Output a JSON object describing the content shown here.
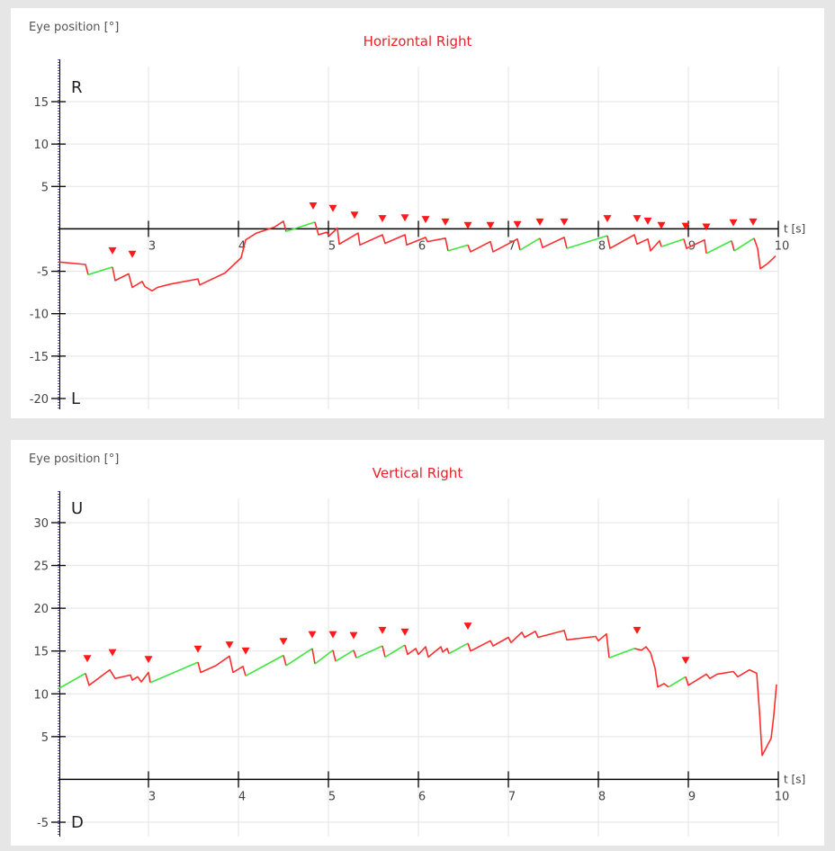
{
  "chart_data": [
    {
      "type": "line",
      "title": "Horizontal Right",
      "ylabel": "Eye position [°]",
      "xlabel": "t [s]",
      "top_marker": "R",
      "bottom_marker": "L",
      "xlim": [
        2,
        10
      ],
      "ylim": [
        -20,
        20
      ],
      "xticks": [
        3,
        4,
        5,
        6,
        7,
        8,
        9,
        10
      ],
      "yticks": [
        15,
        10,
        5,
        -5,
        -10,
        -15,
        -20
      ],
      "grid": true,
      "colors": {
        "fixation": "#ff2d2d",
        "pursuit": "#3ee63e",
        "marker": "#ff1a1a",
        "axis": "#000000",
        "grid": "#e3e3e3"
      },
      "series": [
        {
          "kind": "fixation",
          "points": [
            [
              2,
              -3.9
            ],
            [
              2.3,
              -4.2
            ],
            [
              2.33,
              -5.4
            ]
          ]
        },
        {
          "kind": "pursuit",
          "points": [
            [
              2.33,
              -5.4
            ],
            [
              2.6,
              -4.5
            ]
          ]
        },
        {
          "kind": "fixation",
          "points": [
            [
              2.6,
              -4.5
            ],
            [
              2.63,
              -6.1
            ],
            [
              2.78,
              -5.3
            ],
            [
              2.82,
              -6.9
            ],
            [
              2.93,
              -6.2
            ],
            [
              2.96,
              -6.8
            ],
            [
              3.04,
              -7.3
            ],
            [
              3.1,
              -6.9
            ],
            [
              3.25,
              -6.5
            ],
            [
              3.55,
              -5.9
            ],
            [
              3.57,
              -6.6
            ],
            [
              3.85,
              -5.2
            ],
            [
              4.03,
              -3.4
            ],
            [
              4.08,
              -1.3
            ],
            [
              4.2,
              -0.5
            ],
            [
              4.4,
              0.2
            ],
            [
              4.5,
              0.9
            ],
            [
              4.53,
              -0.3
            ]
          ]
        },
        {
          "kind": "pursuit",
          "points": [
            [
              4.53,
              -0.3
            ],
            [
              4.85,
              0.8
            ]
          ]
        },
        {
          "kind": "fixation",
          "points": [
            [
              4.85,
              0.8
            ],
            [
              4.89,
              -0.7
            ],
            [
              4.98,
              -0.4
            ],
            [
              5.01,
              -0.8
            ],
            [
              5.1,
              0.1
            ],
            [
              5.12,
              -1.8
            ],
            [
              5.33,
              -0.5
            ],
            [
              5.35,
              -1.9
            ],
            [
              5.6,
              -0.7
            ],
            [
              5.63,
              -1.7
            ],
            [
              5.85,
              -0.7
            ],
            [
              5.87,
              -1.9
            ],
            [
              6.08,
              -1.0
            ],
            [
              6.1,
              -1.5
            ],
            [
              6.3,
              -1.1
            ],
            [
              6.33,
              -2.6
            ]
          ]
        },
        {
          "kind": "pursuit",
          "points": [
            [
              6.33,
              -2.6
            ],
            [
              6.55,
              -1.9
            ]
          ]
        },
        {
          "kind": "fixation",
          "points": [
            [
              6.55,
              -1.9
            ],
            [
              6.58,
              -2.7
            ],
            [
              6.8,
              -1.5
            ],
            [
              6.83,
              -2.7
            ],
            [
              7.1,
              -1.2
            ],
            [
              7.13,
              -2.5
            ]
          ]
        },
        {
          "kind": "pursuit",
          "points": [
            [
              7.13,
              -2.5
            ],
            [
              7.35,
              -1.1
            ]
          ]
        },
        {
          "kind": "fixation",
          "points": [
            [
              7.35,
              -1.1
            ],
            [
              7.38,
              -2.2
            ],
            [
              7.62,
              -1.0
            ],
            [
              7.65,
              -2.3
            ]
          ]
        },
        {
          "kind": "pursuit",
          "points": [
            [
              7.65,
              -2.3
            ],
            [
              8.1,
              -0.8
            ]
          ]
        },
        {
          "kind": "fixation",
          "points": [
            [
              8.1,
              -0.8
            ],
            [
              8.13,
              -2.3
            ],
            [
              8.4,
              -0.7
            ],
            [
              8.43,
              -1.8
            ],
            [
              8.55,
              -1.2
            ],
            [
              8.58,
              -2.6
            ],
            [
              8.68,
              -1.4
            ],
            [
              8.7,
              -2.1
            ]
          ]
        },
        {
          "kind": "pursuit",
          "points": [
            [
              8.7,
              -2.1
            ],
            [
              8.95,
              -1.2
            ]
          ]
        },
        {
          "kind": "fixation",
          "points": [
            [
              8.95,
              -1.2
            ],
            [
              8.98,
              -2.3
            ],
            [
              9.18,
              -1.3
            ],
            [
              9.2,
              -2.9
            ]
          ]
        },
        {
          "kind": "pursuit",
          "points": [
            [
              9.2,
              -2.9
            ],
            [
              9.48,
              -1.4
            ]
          ]
        },
        {
          "kind": "fixation",
          "points": [
            [
              9.48,
              -1.4
            ],
            [
              9.51,
              -2.6
            ]
          ]
        },
        {
          "kind": "pursuit",
          "points": [
            [
              9.51,
              -2.6
            ],
            [
              9.73,
              -1.1
            ]
          ]
        },
        {
          "kind": "fixation",
          "points": [
            [
              9.73,
              -1.1
            ],
            [
              9.77,
              -2.3
            ],
            [
              9.8,
              -4.7
            ],
            [
              9.88,
              -4.1
            ],
            [
              9.97,
              -3.2
            ]
          ]
        }
      ],
      "saccade_markers": [
        {
          "x": 2.6,
          "y": -2.6
        },
        {
          "x": 2.82,
          "y": -3.0
        },
        {
          "x": 4.83,
          "y": 2.7
        },
        {
          "x": 5.05,
          "y": 2.4
        },
        {
          "x": 5.29,
          "y": 1.6
        },
        {
          "x": 5.6,
          "y": 1.2
        },
        {
          "x": 5.85,
          "y": 1.3
        },
        {
          "x": 6.08,
          "y": 1.1
        },
        {
          "x": 6.3,
          "y": 0.8
        },
        {
          "x": 6.55,
          "y": 0.4
        },
        {
          "x": 6.8,
          "y": 0.4
        },
        {
          "x": 7.1,
          "y": 0.5
        },
        {
          "x": 7.35,
          "y": 0.8
        },
        {
          "x": 7.62,
          "y": 0.8
        },
        {
          "x": 8.1,
          "y": 1.2
        },
        {
          "x": 8.43,
          "y": 1.2
        },
        {
          "x": 8.55,
          "y": 0.9
        },
        {
          "x": 8.7,
          "y": 0.4
        },
        {
          "x": 8.97,
          "y": 0.3
        },
        {
          "x": 9.2,
          "y": 0.2
        },
        {
          "x": 9.5,
          "y": 0.7
        },
        {
          "x": 9.72,
          "y": 0.8
        }
      ]
    },
    {
      "type": "line",
      "title": "Vertical Right",
      "ylabel": "Eye position [°]",
      "xlabel": "t [s]",
      "top_marker": "U",
      "bottom_marker": "D",
      "xlim": [
        2,
        10
      ],
      "ylim": [
        -6,
        33
      ],
      "xticks": [
        3,
        4,
        5,
        6,
        7,
        8,
        9,
        10
      ],
      "yticks": [
        30,
        25,
        20,
        15,
        10,
        5,
        -5
      ],
      "grid": true,
      "colors": {
        "fixation": "#ff2d2d",
        "pursuit": "#3ee63e",
        "marker": "#ff1a1a",
        "axis": "#000000",
        "grid": "#e3e3e3"
      },
      "series": [
        {
          "kind": "pursuit",
          "points": [
            [
              2,
              10.6
            ],
            [
              2.3,
              12.4
            ]
          ]
        },
        {
          "kind": "fixation",
          "points": [
            [
              2.3,
              12.4
            ],
            [
              2.34,
              11.0
            ],
            [
              2.57,
              12.8
            ],
            [
              2.63,
              11.8
            ],
            [
              2.8,
              12.2
            ],
            [
              2.82,
              11.6
            ],
            [
              2.88,
              12.0
            ],
            [
              2.92,
              11.4
            ],
            [
              3.0,
              12.5
            ],
            [
              3.02,
              11.3
            ]
          ]
        },
        {
          "kind": "pursuit",
          "points": [
            [
              3.02,
              11.3
            ],
            [
              3.55,
              13.7
            ]
          ]
        },
        {
          "kind": "fixation",
          "points": [
            [
              3.55,
              13.7
            ],
            [
              3.58,
              12.5
            ],
            [
              3.75,
              13.3
            ],
            [
              3.9,
              14.4
            ],
            [
              3.94,
              12.5
            ],
            [
              4.05,
              13.2
            ],
            [
              4.08,
              12.1
            ]
          ]
        },
        {
          "kind": "pursuit",
          "points": [
            [
              4.08,
              12.1
            ],
            [
              4.5,
              14.5
            ]
          ]
        },
        {
          "kind": "fixation",
          "points": [
            [
              4.5,
              14.5
            ],
            [
              4.53,
              13.3
            ]
          ]
        },
        {
          "kind": "pursuit",
          "points": [
            [
              4.53,
              13.3
            ],
            [
              4.82,
              15.3
            ]
          ]
        },
        {
          "kind": "fixation",
          "points": [
            [
              4.82,
              15.3
            ],
            [
              4.85,
              13.5
            ]
          ]
        },
        {
          "kind": "pursuit",
          "points": [
            [
              4.85,
              13.5
            ],
            [
              5.05,
              15.1
            ]
          ]
        },
        {
          "kind": "fixation",
          "points": [
            [
              5.05,
              15.1
            ],
            [
              5.08,
              13.8
            ]
          ]
        },
        {
          "kind": "pursuit",
          "points": [
            [
              5.08,
              13.8
            ],
            [
              5.28,
              15.1
            ]
          ]
        },
        {
          "kind": "fixation",
          "points": [
            [
              5.28,
              15.1
            ],
            [
              5.31,
              14.2
            ]
          ]
        },
        {
          "kind": "pursuit",
          "points": [
            [
              5.31,
              14.2
            ],
            [
              5.6,
              15.6
            ]
          ]
        },
        {
          "kind": "fixation",
          "points": [
            [
              5.6,
              15.6
            ],
            [
              5.63,
              14.3
            ]
          ]
        },
        {
          "kind": "pursuit",
          "points": [
            [
              5.63,
              14.3
            ],
            [
              5.85,
              15.7
            ]
          ]
        },
        {
          "kind": "fixation",
          "points": [
            [
              5.85,
              15.7
            ],
            [
              5.88,
              14.6
            ],
            [
              5.97,
              15.3
            ],
            [
              6.0,
              14.6
            ],
            [
              6.08,
              15.5
            ],
            [
              6.11,
              14.3
            ],
            [
              6.25,
              15.5
            ],
            [
              6.27,
              14.9
            ],
            [
              6.32,
              15.3
            ],
            [
              6.34,
              14.7
            ]
          ]
        },
        {
          "kind": "pursuit",
          "points": [
            [
              6.34,
              14.7
            ],
            [
              6.55,
              15.9
            ]
          ]
        },
        {
          "kind": "fixation",
          "points": [
            [
              6.55,
              15.9
            ],
            [
              6.58,
              15.0
            ],
            [
              6.8,
              16.2
            ],
            [
              6.83,
              15.6
            ],
            [
              7.0,
              16.6
            ],
            [
              7.03,
              16.0
            ],
            [
              7.15,
              17.2
            ],
            [
              7.18,
              16.6
            ],
            [
              7.3,
              17.3
            ],
            [
              7.33,
              16.6
            ],
            [
              7.62,
              17.4
            ],
            [
              7.65,
              16.3
            ],
            [
              7.97,
              16.7
            ],
            [
              8.0,
              16.2
            ],
            [
              8.09,
              17.0
            ],
            [
              8.12,
              14.2
            ]
          ]
        },
        {
          "kind": "pursuit",
          "points": [
            [
              8.12,
              14.2
            ],
            [
              8.4,
              15.3
            ]
          ]
        },
        {
          "kind": "fixation",
          "points": [
            [
              8.4,
              15.3
            ],
            [
              8.48,
              15.1
            ],
            [
              8.53,
              15.5
            ],
            [
              8.58,
              14.8
            ],
            [
              8.63,
              13.0
            ],
            [
              8.66,
              10.8
            ],
            [
              8.73,
              11.2
            ],
            [
              8.78,
              10.8
            ]
          ]
        },
        {
          "kind": "pursuit",
          "points": [
            [
              8.78,
              10.8
            ],
            [
              8.97,
              12.0
            ]
          ]
        },
        {
          "kind": "fixation",
          "points": [
            [
              8.97,
              12.0
            ],
            [
              9.0,
              11.0
            ],
            [
              9.2,
              12.3
            ],
            [
              9.24,
              11.8
            ],
            [
              9.32,
              12.3
            ],
            [
              9.5,
              12.6
            ],
            [
              9.55,
              12.0
            ],
            [
              9.68,
              12.8
            ],
            [
              9.76,
              12.4
            ],
            [
              9.79,
              8.0
            ],
            [
              9.82,
              2.8
            ],
            [
              9.92,
              4.8
            ],
            [
              9.95,
              7.5
            ],
            [
              9.98,
              11.1
            ]
          ]
        }
      ],
      "saccade_markers": [
        {
          "x": 2.32,
          "y": 14.1
        },
        {
          "x": 2.6,
          "y": 14.8
        },
        {
          "x": 3.0,
          "y": 14.0
        },
        {
          "x": 3.55,
          "y": 15.2
        },
        {
          "x": 3.9,
          "y": 15.7
        },
        {
          "x": 4.08,
          "y": 15.0
        },
        {
          "x": 4.5,
          "y": 16.1
        },
        {
          "x": 4.82,
          "y": 16.9
        },
        {
          "x": 5.05,
          "y": 16.9
        },
        {
          "x": 5.28,
          "y": 16.8
        },
        {
          "x": 5.6,
          "y": 17.4
        },
        {
          "x": 5.85,
          "y": 17.2
        },
        {
          "x": 6.55,
          "y": 17.9
        },
        {
          "x": 8.43,
          "y": 17.4
        },
        {
          "x": 8.97,
          "y": 13.9
        }
      ]
    }
  ]
}
